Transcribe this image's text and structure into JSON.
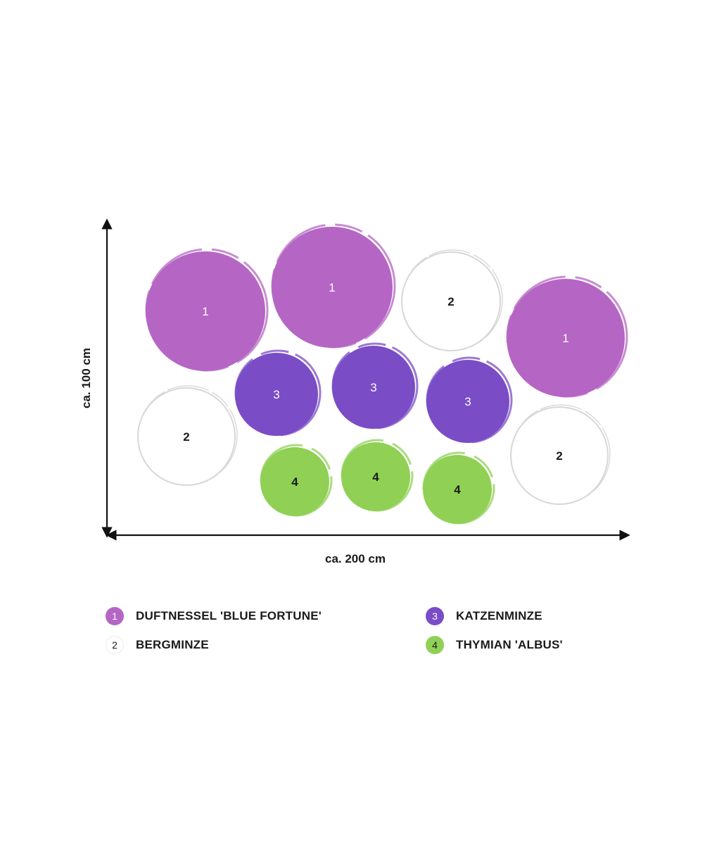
{
  "dimensions": {
    "width_label": "ca. 200 cm",
    "height_label": "ca. 100 cm"
  },
  "colors": {
    "duftnessel": "#b565c4",
    "bergminze": "#ffffff",
    "katzenminze": "#7a4cc6",
    "thymian": "#8fd055",
    "outline": "#d7d7d7",
    "text_dark": "#1a1a1a",
    "text_light": "#ffffff"
  },
  "legend": [
    {
      "number": "1",
      "label": "DUFTNESSEL 'BLUE FORTUNE'",
      "color": "#b565c4",
      "text_color": "#ffffff"
    },
    {
      "number": "2",
      "label": "BERGMINZE",
      "color": "#ffffff",
      "text_color": "#1a1a1a"
    },
    {
      "number": "3",
      "label": "KATZENMINZE",
      "color": "#7a4cc6",
      "text_color": "#ffffff"
    },
    {
      "number": "4",
      "label": "THYMIAN 'ALBUS'",
      "color": "#8fd055",
      "text_color": "#1a1a1a"
    }
  ],
  "plants": [
    {
      "number": "1",
      "type": "duftnessel"
    },
    {
      "number": "1",
      "type": "duftnessel"
    },
    {
      "number": "2",
      "type": "bergminze"
    },
    {
      "number": "1",
      "type": "duftnessel"
    },
    {
      "number": "3",
      "type": "katzenminze"
    },
    {
      "number": "3",
      "type": "katzenminze"
    },
    {
      "number": "3",
      "type": "katzenminze"
    },
    {
      "number": "2",
      "type": "bergminze"
    },
    {
      "number": "2",
      "type": "bergminze"
    },
    {
      "number": "4",
      "type": "thymian"
    },
    {
      "number": "4",
      "type": "thymian"
    },
    {
      "number": "4",
      "type": "thymian"
    }
  ]
}
